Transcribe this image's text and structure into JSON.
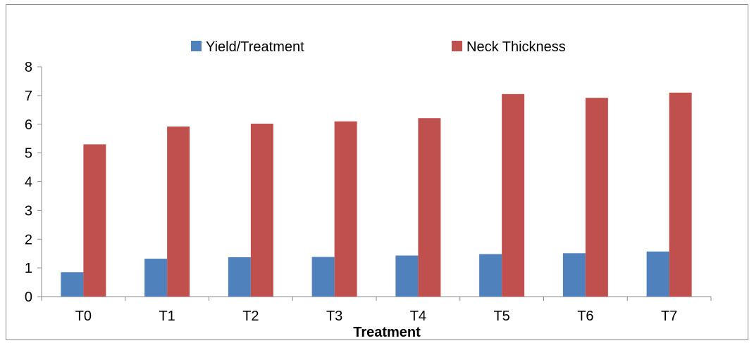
{
  "chart_data": {
    "type": "bar",
    "title": "",
    "xlabel": "Treatment",
    "ylabel": "",
    "ylim": [
      0,
      8
    ],
    "yticks": [
      0,
      1,
      2,
      3,
      4,
      5,
      6,
      7,
      8
    ],
    "grid": false,
    "legend_position": "top",
    "categories": [
      "T0",
      "T1",
      "T2",
      "T3",
      "T4",
      "T5",
      "T6",
      "T7"
    ],
    "series": [
      {
        "name": "Yield/Treatment",
        "color": "#4f81bd",
        "values": [
          0.85,
          1.32,
          1.37,
          1.38,
          1.43,
          1.48,
          1.51,
          1.57
        ]
      },
      {
        "name": "Neck Thickness",
        "color": "#c0504d",
        "values": [
          5.3,
          5.92,
          6.02,
          6.1,
          6.21,
          7.05,
          6.92,
          7.1
        ]
      }
    ]
  }
}
